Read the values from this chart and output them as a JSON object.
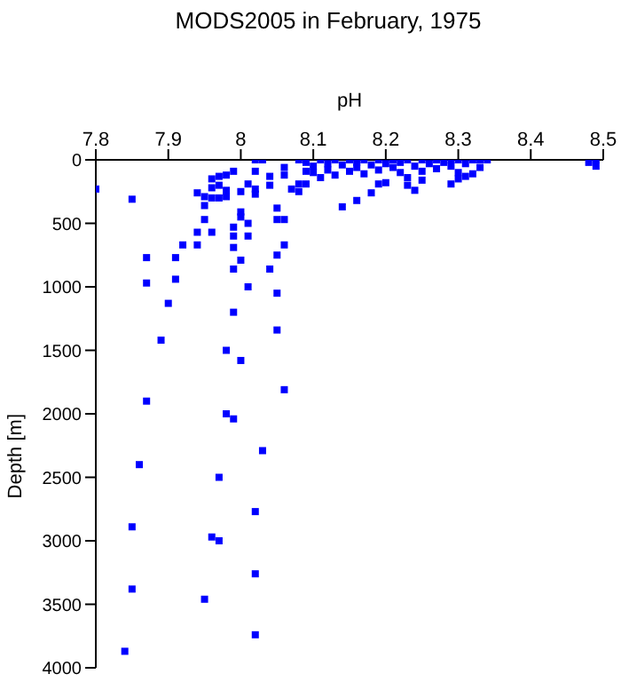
{
  "chart_data": {
    "type": "scatter",
    "title": "MODS2005 in February, 1975",
    "xlabel": "pH",
    "ylabel": "Depth [m]",
    "xlim": [
      7.8,
      8.5
    ],
    "xticks": [
      7.8,
      7.9,
      {
        "value": 8,
        "label": "8"
      },
      8.1,
      8.2,
      8.3,
      8.4,
      8.5
    ],
    "ylim": [
      4000,
      0
    ],
    "yticks": [
      0,
      500,
      1000,
      1500,
      2000,
      2500,
      3000,
      3500,
      4000
    ],
    "grid": false,
    "marker": "square",
    "series": [
      {
        "color": "#0000ff",
        "x": [
          7.87,
          7.91,
          7.9,
          7.89,
          7.87,
          7.86,
          7.85,
          7.85,
          7.84,
          7.99,
          8.04,
          8.01,
          8.05,
          7.99,
          8.05,
          7.98,
          8.0,
          8.06,
          7.98,
          7.99,
          8.03,
          7.97,
          8.02,
          7.96,
          7.97,
          8.02,
          7.95,
          8.02,
          7.8,
          7.85,
          7.87,
          7.91,
          7.92,
          7.94,
          7.95,
          7.95,
          7.95,
          7.94,
          7.94,
          7.96,
          7.96,
          7.96,
          7.96,
          7.97,
          7.97,
          7.97,
          7.98,
          7.98,
          7.98,
          7.99,
          7.99,
          7.99,
          7.99,
          8.0,
          8.0,
          8.0,
          8.0,
          8.01,
          8.01,
          8.01,
          8.02,
          8.02,
          8.02,
          8.02,
          8.03,
          8.04,
          8.04,
          8.05,
          8.05,
          8.05,
          8.06,
          8.06,
          8.06,
          8.06,
          8.07,
          8.08,
          8.08,
          8.09,
          8.09,
          8.14,
          8.16,
          8.18,
          8.19,
          8.2,
          8.23,
          8.24,
          8.29,
          8.08,
          8.09,
          8.1,
          8.1,
          8.11,
          8.11,
          8.12,
          8.12,
          8.13,
          8.13,
          8.14,
          8.15,
          8.15,
          8.16,
          8.16,
          8.17,
          8.17,
          8.18,
          8.19,
          8.19,
          8.2,
          8.21,
          8.21,
          8.22,
          8.22,
          8.23,
          8.23,
          8.24,
          8.25,
          8.25,
          8.25,
          8.26,
          8.27,
          8.27,
          8.28,
          8.29,
          8.29,
          8.3,
          8.3,
          8.3,
          8.31,
          8.31,
          8.32,
          8.32,
          8.33,
          8.33,
          8.34,
          8.48,
          8.49,
          8.49
        ],
        "values": [
          970,
          940,
          1130,
          1420,
          1900,
          2400,
          2890,
          3380,
          3870,
          860,
          860,
          1000,
          1050,
          1200,
          1340,
          1500,
          1580,
          1810,
          2000,
          2040,
          2290,
          2500,
          2770,
          2970,
          3000,
          3260,
          3460,
          3740,
          230,
          310,
          770,
          770,
          670,
          260,
          290,
          360,
          470,
          570,
          670,
          570,
          150,
          220,
          300,
          130,
          200,
          300,
          120,
          240,
          290,
          90,
          530,
          600,
          690,
          250,
          410,
          450,
          790,
          190,
          500,
          600,
          90,
          230,
          270,
          0,
          0,
          130,
          200,
          380,
          470,
          750,
          470,
          670,
          60,
          120,
          230,
          190,
          250,
          90,
          190,
          370,
          320,
          260,
          190,
          180,
          200,
          240,
          190,
          0,
          20,
          50,
          100,
          0,
          140,
          30,
          80,
          0,
          120,
          40,
          0,
          90,
          20,
          60,
          0,
          110,
          40,
          0,
          80,
          30,
          0,
          60,
          20,
          100,
          0,
          140,
          50,
          0,
          90,
          160,
          30,
          0,
          70,
          20,
          0,
          50,
          0,
          100,
          150,
          30,
          130,
          0,
          110,
          0,
          60,
          0,
          20,
          0,
          50
        ]
      }
    ]
  }
}
